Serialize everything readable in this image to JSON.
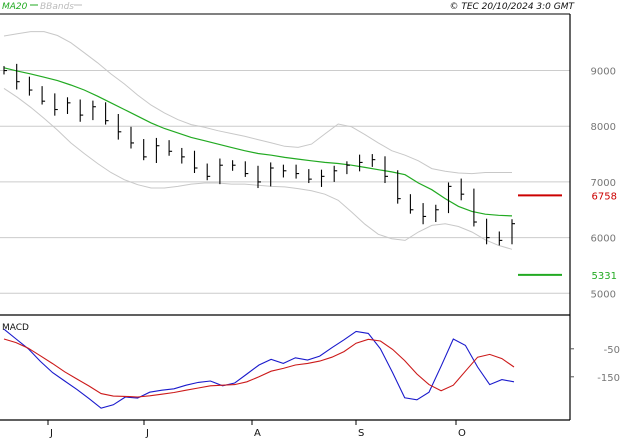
{
  "header": {
    "copyright": "© TEC 20/10/2024 3:0 GMT",
    "legend": [
      {
        "label": "MA20",
        "color": "#22aa22"
      },
      {
        "label": "BBands",
        "color": "#bbbbbb"
      }
    ]
  },
  "colors": {
    "price": "#000000",
    "ma": "#22aa22",
    "bands": "#c8c8c8",
    "grid": "#cccccc",
    "resistance": "#cc0000",
    "support": "#22aa22",
    "macd": "#1a1acc",
    "signal": "#cc1a1a"
  },
  "chart_data": [
    {
      "type": "line",
      "title": "",
      "ylim": [
        4700,
        9800
      ],
      "y_ticks": [
        {
          "value": 5000,
          "label": "5000"
        },
        {
          "value": 6000,
          "label": "6000"
        },
        {
          "value": 7000,
          "label": "7000"
        },
        {
          "value": 8000,
          "label": "8000"
        },
        {
          "value": 9000,
          "label": "9000"
        }
      ],
      "x_ticks": [
        "J",
        "J",
        "A",
        "S",
        "O"
      ],
      "levels": [
        {
          "name": "resistance",
          "value": 6758,
          "label": "6758"
        },
        {
          "name": "support",
          "value": 5331,
          "label": "5331"
        }
      ],
      "series": [
        {
          "name": "MA20",
          "values": [
            9050,
            8990,
            8940,
            8880,
            8820,
            8740,
            8650,
            8540,
            8420,
            8300,
            8180,
            8060,
            7960,
            7880,
            7800,
            7740,
            7680,
            7620,
            7560,
            7510,
            7480,
            7440,
            7410,
            7380,
            7350,
            7330,
            7300,
            7260,
            7220,
            7180,
            7130,
            6980,
            6860,
            6700,
            6560,
            6470,
            6420,
            6400,
            6390
          ]
        },
        {
          "name": "BBands",
          "upper": [
            9620,
            9660,
            9700,
            9700,
            9630,
            9500,
            9320,
            9140,
            8940,
            8760,
            8560,
            8380,
            8240,
            8120,
            8030,
            7980,
            7920,
            7870,
            7820,
            7760,
            7700,
            7640,
            7620,
            7680,
            7860,
            8040,
            7990,
            7850,
            7700,
            7560,
            7480,
            7380,
            7240,
            7190,
            7160,
            7150,
            7170,
            7170,
            7170
          ],
          "lower": [
            8680,
            8520,
            8340,
            8140,
            7930,
            7700,
            7510,
            7330,
            7170,
            7040,
            6950,
            6890,
            6890,
            6920,
            6960,
            6980,
            6980,
            6960,
            6960,
            6940,
            6920,
            6910,
            6880,
            6840,
            6780,
            6670,
            6460,
            6240,
            6060,
            5980,
            5950,
            6100,
            6220,
            6250,
            6200,
            6100,
            5960,
            5860,
            5790
          ]
        },
        {
          "name": "Price",
          "values": [
            9000,
            8800,
            8650,
            8450,
            8300,
            8420,
            8200,
            8350,
            8100,
            7900,
            7700,
            7450,
            7650,
            7550,
            7450,
            7250,
            7100,
            7300,
            7300,
            7150,
            7000,
            7250,
            7200,
            7150,
            7050,
            7100,
            7200,
            7300,
            7350,
            7400,
            7100,
            6700,
            6500,
            6380,
            6500,
            6920,
            6780,
            6280,
            6000,
            5950,
            6250
          ]
        }
      ]
    },
    {
      "type": "line",
      "title": "MACD",
      "ylim": [
        -290,
        60
      ],
      "y_ticks": [
        {
          "value": -50,
          "label": "-50"
        },
        {
          "value": -150,
          "label": "-150"
        }
      ],
      "series": [
        {
          "name": "MACD",
          "values": [
            20,
            -15,
            -50,
            -95,
            -135,
            -165,
            -195,
            -228,
            -262,
            -250,
            -222,
            -226,
            -205,
            -198,
            -193,
            -180,
            -170,
            -165,
            -182,
            -172,
            -140,
            -108,
            -88,
            -102,
            -82,
            -90,
            -76,
            -46,
            -18,
            12,
            5,
            -50,
            -135,
            -225,
            -232,
            -205,
            -112,
            -15,
            -38,
            -115,
            -178,
            -160,
            -168
          ]
        },
        {
          "name": "Signal",
          "values": [
            -15,
            -28,
            -48,
            -75,
            -103,
            -132,
            -158,
            -183,
            -210,
            -219,
            -220,
            -222,
            -218,
            -212,
            -206,
            -198,
            -190,
            -182,
            -180,
            -178,
            -168,
            -150,
            -130,
            -120,
            -108,
            -102,
            -94,
            -80,
            -60,
            -30,
            -16,
            -22,
            -52,
            -92,
            -140,
            -178,
            -200,
            -180,
            -130,
            -80,
            -70,
            -85,
            -115
          ]
        }
      ]
    }
  ]
}
